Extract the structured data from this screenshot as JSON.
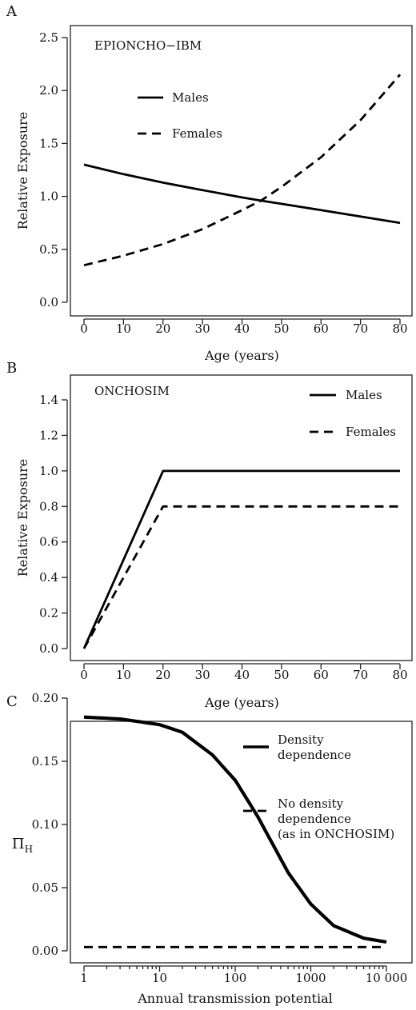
{
  "chart_data": [
    {
      "panel": "A",
      "type": "line",
      "title": "EPIONCHO−IBM",
      "xlabel": "Age (years)",
      "ylabel": "Relative Exposure",
      "xlim": [
        0,
        80
      ],
      "ylim": [
        0,
        2.5
      ],
      "xticks": [
        0,
        10,
        20,
        30,
        40,
        50,
        60,
        70,
        80
      ],
      "xticklabels": [
        "0",
        "10",
        "20",
        "30",
        "40",
        "50",
        "60",
        "70",
        "80"
      ],
      "yticks": [
        0,
        0.5,
        1,
        1.5,
        2,
        2.5
      ],
      "yticklabels": [
        "0.0",
        "0.5",
        "1.0",
        "1.5",
        "2.0",
        "2.5"
      ],
      "legend_position": "top-left",
      "series": [
        {
          "name": "Males",
          "style": "solid",
          "x": [
            0,
            10,
            20,
            30,
            40,
            44.8,
            50,
            60,
            70,
            80
          ],
          "y": [
            1.3,
            1.21,
            1.13,
            1.06,
            0.99,
            0.96,
            0.93,
            0.87,
            0.81,
            0.75
          ]
        },
        {
          "name": "Females",
          "style": "dashed",
          "x": [
            0,
            10,
            20,
            30,
            40,
            44.8,
            50,
            60,
            70,
            80
          ],
          "y": [
            0.35,
            0.44,
            0.55,
            0.69,
            0.87,
            0.96,
            1.09,
            1.37,
            1.72,
            2.15
          ]
        }
      ]
    },
    {
      "panel": "B",
      "type": "line",
      "title": "ONCHOSIM",
      "xlabel": "Age (years)",
      "ylabel": "Relative Exposure",
      "xlim": [
        0,
        80
      ],
      "ylim": [
        0,
        1.4
      ],
      "xticks": [
        0,
        10,
        20,
        30,
        40,
        50,
        60,
        70,
        80
      ],
      "xticklabels": [
        "0",
        "10",
        "20",
        "30",
        "40",
        "50",
        "60",
        "70",
        "80"
      ],
      "yticks": [
        0,
        0.2,
        0.4,
        0.6,
        0.8,
        1.0,
        1.2,
        1.4
      ],
      "yticklabels": [
        "0.0",
        "0.2",
        "0.4",
        "0.6",
        "0.8",
        "1.0",
        "1.2",
        "1.4"
      ],
      "legend_position": "top-right",
      "series": [
        {
          "name": "Males",
          "style": "solid",
          "x": [
            0,
            20,
            80
          ],
          "y": [
            0,
            1.0,
            1.0
          ]
        },
        {
          "name": "Females",
          "style": "dashed",
          "x": [
            0,
            20,
            80
          ],
          "y": [
            0,
            0.8,
            0.8
          ]
        }
      ]
    },
    {
      "panel": "C",
      "type": "line",
      "xlabel": "Annual transmission potential",
      "ylabel": "Π",
      "ylabel_subscript": "H",
      "xscale": "log",
      "xlim": [
        1,
        10000
      ],
      "ylim": [
        0,
        0.2
      ],
      "xticks": [
        1,
        10,
        100,
        1000,
        10000
      ],
      "xticklabels": [
        "1",
        "10",
        "100",
        "1000",
        "10 000"
      ],
      "yticks": [
        0,
        0.05,
        0.1,
        0.15,
        0.2
      ],
      "yticklabels": [
        "0.00",
        "0.05",
        "0.10",
        "0.15",
        "0.20"
      ],
      "legend_position": "top-right",
      "series": [
        {
          "name": "Density\ndependence",
          "style": "solid-thick",
          "x": [
            1,
            3,
            10,
            20,
            50,
            100,
            200,
            500,
            1000,
            2000,
            5000,
            10000
          ],
          "y": [
            0.185,
            0.1835,
            0.179,
            0.173,
            0.155,
            0.135,
            0.106,
            0.062,
            0.037,
            0.02,
            0.01,
            0.007
          ]
        },
        {
          "name": "No density\ndependence\n(as in ONCHOSIM)",
          "style": "dashed",
          "x": [
            1,
            10000
          ],
          "y": [
            0.003,
            0.003
          ]
        }
      ]
    }
  ]
}
